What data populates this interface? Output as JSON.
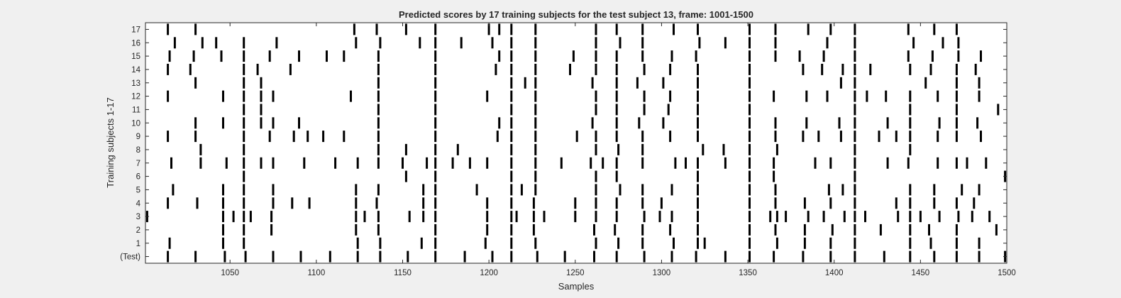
{
  "chart_data": {
    "type": "raster",
    "title": "Predicted scores by 17 training subjects for the test subject 13, frame: 1001-1500",
    "xlabel": "Samples",
    "ylabel": "Training subjects 1-17",
    "xlim": [
      1001,
      1500
    ],
    "x_ticks": [
      1050,
      1100,
      1150,
      1200,
      1250,
      1300,
      1350,
      1400,
      1450,
      1500
    ],
    "y_tick_labels": [
      "(Test)",
      "1",
      "2",
      "3",
      "4",
      "5",
      "6",
      "7",
      "8",
      "9",
      "10",
      "11",
      "12",
      "13",
      "14",
      "15",
      "16",
      "17"
    ],
    "grid": false,
    "legend": "none",
    "colors": {
      "background": "#f0f0f0",
      "axes": "#ffffff",
      "mark": "#000000",
      "text": "#262626"
    },
    "rows": [
      {
        "label": "(Test)",
        "events": [
          1014,
          1030,
          1047,
          1059,
          1075,
          1091,
          1108,
          1124,
          1137,
          1153,
          1169,
          1186,
          1202,
          1213,
          1228,
          1244,
          1261,
          1274,
          1290,
          1306,
          1320,
          1337,
          1351,
          1365,
          1382,
          1398,
          1412,
          1429,
          1444,
          1458,
          1471,
          1484,
          1499
        ]
      },
      {
        "label": "1",
        "events": [
          1015,
          1046,
          1058,
          1124,
          1137,
          1161,
          1169,
          1198,
          1213,
          1227,
          1262,
          1275,
          1289,
          1307,
          1321,
          1325,
          1351,
          1367,
          1383,
          1398,
          1412,
          1444,
          1456,
          1471,
          1484
        ]
      },
      {
        "label": "2",
        "events": [
          1046,
          1058,
          1074,
          1123,
          1136,
          1169,
          1199,
          1213,
          1226,
          1261,
          1273,
          1289,
          1305,
          1321,
          1351,
          1366,
          1383,
          1399,
          1412,
          1427,
          1444,
          1455,
          1471,
          1494
        ]
      },
      {
        "label": "3",
        "events": [
          1002,
          1046,
          1052,
          1058,
          1062,
          1074,
          1123,
          1128,
          1136,
          1154,
          1162,
          1169,
          1199,
          1213,
          1216,
          1226,
          1232,
          1250,
          1262,
          1274,
          1290,
          1299,
          1306,
          1321,
          1351,
          1363,
          1367,
          1372,
          1385,
          1394,
          1406,
          1412,
          1418,
          1437,
          1444,
          1450,
          1461,
          1472,
          1480,
          1490
        ]
      },
      {
        "label": "4",
        "events": [
          1014,
          1031,
          1046,
          1058,
          1075,
          1086,
          1096,
          1123,
          1135,
          1162,
          1169,
          1199,
          1213,
          1226,
          1250,
          1262,
          1274,
          1289,
          1300,
          1321,
          1351,
          1366,
          1383,
          1398,
          1412,
          1436,
          1444,
          1458,
          1471,
          1481
        ]
      },
      {
        "label": "5",
        "events": [
          1017,
          1046,
          1058,
          1075,
          1123,
          1136,
          1162,
          1169,
          1193,
          1213,
          1219,
          1227,
          1262,
          1276,
          1289,
          1306,
          1321,
          1351,
          1366,
          1397,
          1405,
          1412,
          1444,
          1458,
          1474,
          1484
        ]
      },
      {
        "label": "6",
        "events": [
          1058,
          1152,
          1169,
          1213,
          1227,
          1262,
          1274,
          1321,
          1351,
          1365,
          1412,
          1499
        ]
      },
      {
        "label": "7",
        "events": [
          1016,
          1033,
          1048,
          1058,
          1068,
          1075,
          1093,
          1111,
          1124,
          1136,
          1150,
          1164,
          1169,
          1179,
          1189,
          1199,
          1213,
          1227,
          1242,
          1259,
          1266,
          1274,
          1289,
          1308,
          1314,
          1321,
          1337,
          1351,
          1365,
          1389,
          1398,
          1412,
          1431,
          1443,
          1460,
          1471,
          1477,
          1488
        ]
      },
      {
        "label": "8",
        "events": [
          1033,
          1058,
          1136,
          1152,
          1169,
          1182,
          1213,
          1227,
          1262,
          1275,
          1289,
          1324,
          1336,
          1351,
          1367,
          1412,
          1444
        ]
      },
      {
        "label": "9",
        "events": [
          1014,
          1030,
          1058,
          1073,
          1087,
          1095,
          1104,
          1116,
          1136,
          1169,
          1205,
          1213,
          1227,
          1251,
          1262,
          1274,
          1289,
          1305,
          1321,
          1351,
          1366,
          1382,
          1391,
          1404,
          1412,
          1426,
          1436,
          1444,
          1460,
          1471,
          1485
        ]
      },
      {
        "label": "10",
        "events": [
          1030,
          1046,
          1058,
          1068,
          1075,
          1090,
          1136,
          1169,
          1206,
          1213,
          1227,
          1260,
          1274,
          1287,
          1301,
          1321,
          1351,
          1366,
          1384,
          1403,
          1412,
          1431,
          1444,
          1461,
          1471,
          1483
        ]
      },
      {
        "label": "11",
        "events": [
          1058,
          1068,
          1136,
          1169,
          1213,
          1227,
          1262,
          1274,
          1290,
          1304,
          1321,
          1351,
          1412,
          1444,
          1471,
          1495
        ]
      },
      {
        "label": "12",
        "events": [
          1014,
          1046,
          1058,
          1068,
          1075,
          1120,
          1136,
          1169,
          1199,
          1213,
          1227,
          1262,
          1274,
          1290,
          1305,
          1321,
          1351,
          1365,
          1384,
          1396,
          1412,
          1419,
          1430,
          1444,
          1460,
          1471,
          1484
        ]
      },
      {
        "label": "13",
        "events": [
          1030,
          1058,
          1068,
          1136,
          1169,
          1213,
          1221,
          1227,
          1260,
          1274,
          1286,
          1301,
          1321,
          1351,
          1404,
          1412,
          1453,
          1471,
          1484
        ]
      },
      {
        "label": "14",
        "events": [
          1014,
          1027,
          1058,
          1066,
          1085,
          1136,
          1169,
          1204,
          1213,
          1227,
          1247,
          1262,
          1274,
          1290,
          1305,
          1321,
          1351,
          1382,
          1393,
          1405,
          1412,
          1421,
          1444,
          1456,
          1471,
          1482
        ]
      },
      {
        "label": "15",
        "events": [
          1015,
          1029,
          1045,
          1058,
          1073,
          1090,
          1106,
          1116,
          1136,
          1169,
          1206,
          1213,
          1227,
          1249,
          1262,
          1274,
          1289,
          1306,
          1320,
          1351,
          1366,
          1380,
          1394,
          1412,
          1443,
          1457,
          1472,
          1485
        ]
      },
      {
        "label": "16",
        "events": [
          1018,
          1034,
          1042,
          1058,
          1077,
          1123,
          1137,
          1160,
          1169,
          1184,
          1202,
          1213,
          1227,
          1262,
          1276,
          1289,
          1322,
          1337,
          1351,
          1366,
          1396,
          1412,
          1446,
          1463,
          1472
        ]
      },
      {
        "label": "17",
        "events": [
          1014,
          1030,
          1122,
          1135,
          1152,
          1169,
          1200,
          1206,
          1213,
          1227,
          1262,
          1274,
          1289,
          1307,
          1321,
          1351,
          1366,
          1385,
          1398,
          1412,
          1443,
          1458,
          1471
        ]
      }
    ]
  }
}
